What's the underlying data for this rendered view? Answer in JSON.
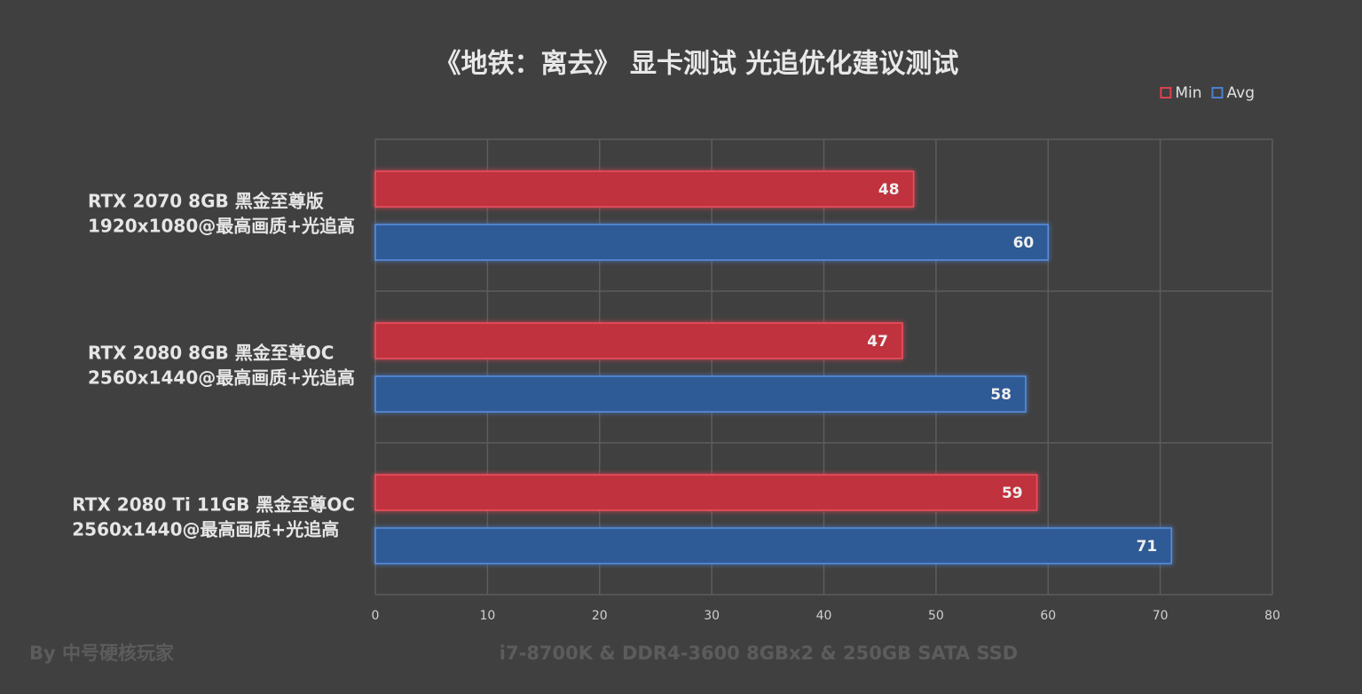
{
  "chart_data": {
    "type": "bar",
    "orientation": "horizontal",
    "title": "《地铁：离去》 显卡测试 光追优化建议测试",
    "categories": [
      [
        "RTX 2070 8GB 黑金至尊版",
        "1920x1080@最高画质+光追高"
      ],
      [
        "RTX 2080 8GB 黑金至尊OC",
        "2560x1440@最高画质+光追高"
      ],
      [
        "RTX 2080 Ti 11GB 黑金至尊OC",
        "2560x1440@最高画质+光追高"
      ]
    ],
    "series": [
      {
        "name": "Min",
        "color": "#c0303c",
        "values": [
          48,
          47,
          59
        ]
      },
      {
        "name": "Avg",
        "color": "#2d5a96",
        "values": [
          60,
          58,
          71
        ]
      }
    ],
    "xlim": [
      0,
      80
    ],
    "xticks": [
      0,
      10,
      20,
      30,
      40,
      50,
      60,
      70,
      80
    ],
    "grid": true,
    "legend": "top-right",
    "credit": "By 中号硬核玩家",
    "note": "i7-8700K & DDR4-3600 8GBx2 & 250GB SATA SSD"
  }
}
